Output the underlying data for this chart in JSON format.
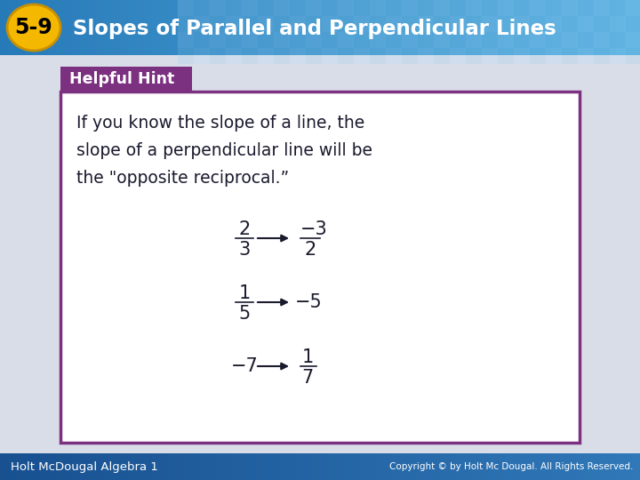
{
  "title_badge": "5-9",
  "title_text": "Slopes of Parallel and Perpendicular Lines",
  "hint_label": "Helpful Hint",
  "body_line1": "If you know the slope of a line, the",
  "body_line2": "slope of a perpendicular line will be",
  "body_line3": "the \"opposite reciprocal.”",
  "bg_color": "#d8dde8",
  "header_bg_left": "#3a8fc8",
  "header_bg_right": "#5ab0e0",
  "badge_bg": "#f5b800",
  "badge_text_color": "#000000",
  "title_text_color": "#ffffff",
  "hint_bg": "#7b3080",
  "hint_text_color": "#ffffff",
  "box_border_color": "#7b3080",
  "box_bg": "#ffffff",
  "body_text_color": "#1a1a2e",
  "footer_bg": "#2060a0",
  "footer_left": "Holt McDougal Algebra 1",
  "footer_right": "Copyright © by Holt Mc Dougal. All Rights Reserved.",
  "footer_text_color": "#ffffff",
  "header_tile_color1": "#4aa0d0",
  "header_tile_color2": "#60b8e8"
}
